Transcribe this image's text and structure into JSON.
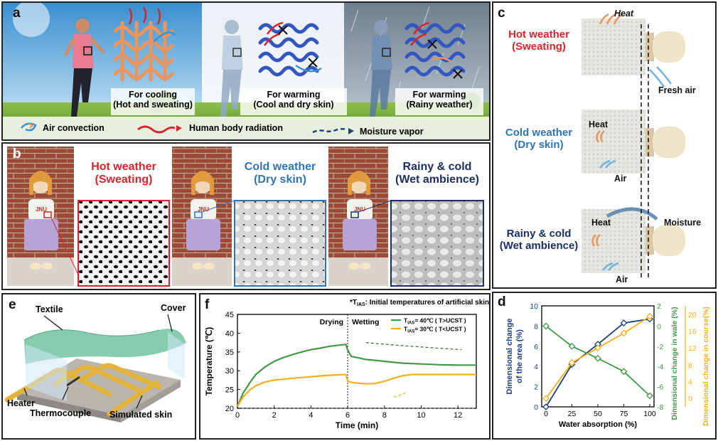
{
  "panel_a": {
    "label": "a",
    "cooling": {
      "line1": "For cooling",
      "line2": "(Hot and sweating)"
    },
    "warming_dry": {
      "line1": "For warming",
      "line2": "(Cool and dry skin)"
    },
    "warming_rain": {
      "line1": "For warming",
      "line2": "(Rainy weather)"
    },
    "legend": {
      "air": "Air convection",
      "radiation": "Human body radiation",
      "vapor": "Moisture vapor"
    }
  },
  "panel_b": {
    "label": "b",
    "hot": {
      "line1": "Hot weather",
      "line2": "(Sweating)",
      "shirt": "JNU"
    },
    "cold": {
      "line1": "Cold weather",
      "line2": "(Dry skin)",
      "shirt": "JNU"
    },
    "rainy": {
      "line1": "Rainy & cold",
      "line2": "(Wet ambience)",
      "shirt": "JNU"
    }
  },
  "panel_c": {
    "label": "c",
    "hot": {
      "line1": "Hot weather",
      "line2": "(Sweating)",
      "heat": "Heat",
      "fresh": "Fresh air"
    },
    "cold": {
      "line1": "Cold weather",
      "line2": "(Dry skin)",
      "heat": "Heat",
      "air": "Air"
    },
    "rainy": {
      "line1": "Rainy & cold",
      "line2": "(Wet ambience)",
      "heat": "Heat",
      "air": "Air",
      "moisture": "Moisture"
    }
  },
  "panel_e": {
    "label": "e",
    "textile": "Textile",
    "cover": "Cover",
    "heater": "Heater",
    "thermocouple": "Thermocouple",
    "skin": "Simulated skin"
  },
  "colors": {
    "hot": "#d8242c",
    "cold": "#2f74b5",
    "rainy": "#1b2f63",
    "green": "#3e9a46",
    "orange": "#f5b019",
    "navy": "#1f3f7a"
  },
  "chart_data": [
    {
      "type": "line",
      "panel": "f",
      "title": "*T_IAS: Initial temperatures of artificial skin",
      "note_star": "*T",
      "note_sub": "IAS",
      "note_rest": ": Initial temperatures of artificial skin",
      "xlabel": "Time (min)",
      "ylabel": "Temperature (℃)",
      "xlim": [
        0,
        13
      ],
      "ylim": [
        20,
        45
      ],
      "xticks": [
        0,
        2,
        4,
        6,
        8,
        10,
        12
      ],
      "yticks": [
        20,
        25,
        30,
        35,
        40,
        45
      ],
      "drying_label": "Drying",
      "wetting_label": "Wetting",
      "divider_x": 6,
      "legend_position": "top-right",
      "series": [
        {
          "name": "T_IAS= 40℃ ( T>UCST )",
          "name_pre": "T",
          "name_sub": "IAS",
          "name_post": "= 40℃ ( T>UCST )",
          "color": "#3e9a46",
          "x": [
            0,
            0.3,
            0.7,
            1,
            1.5,
            2,
            2.5,
            3,
            3.5,
            4,
            4.5,
            5,
            5.5,
            5.9,
            6,
            6.2,
            7,
            8,
            9,
            10,
            11,
            12,
            13
          ],
          "y": [
            20.5,
            24,
            27,
            29,
            31,
            32.5,
            33.5,
            34.3,
            35,
            35.6,
            36,
            36.5,
            36.8,
            37,
            35.5,
            33.8,
            33,
            32.5,
            32,
            31.8,
            31.6,
            31.5,
            31.5
          ]
        },
        {
          "name": "T_IAS= 30℃ ( T<UCST )",
          "name_pre": "T",
          "name_sub": "IAS",
          "name_post": "= 30℃ ( T<UCST )",
          "color": "#f5b019",
          "x": [
            0,
            0.3,
            0.7,
            1,
            1.5,
            2,
            3,
            4,
            5,
            5.9,
            6,
            6.3,
            7,
            7.5,
            8,
            8.5,
            9,
            9.5,
            10,
            11,
            12,
            13
          ],
          "y": [
            20.5,
            23,
            25,
            26,
            27,
            27.5,
            28,
            28.4,
            28.8,
            29,
            27.2,
            26.8,
            26.5,
            26.6,
            27.2,
            28,
            28.7,
            29,
            29,
            29,
            29,
            29
          ]
        }
      ]
    },
    {
      "type": "line",
      "panel": "d",
      "xlabel": "Water absorption (%)",
      "ylabel_left": "Dimensional change of the area (%)",
      "ylabel_left_1": "Dimensional change",
      "ylabel_left_2": "of the area (%)",
      "ylabel_mid": "Dimensional change in wale (%)",
      "ylabel_right": "Dimensional change in course(%)",
      "xlim": [
        0,
        100
      ],
      "xticks": [
        0,
        25,
        50,
        75,
        100
      ],
      "ylim_left": [
        0,
        10
      ],
      "yticks_left": [
        0,
        2,
        4,
        6,
        8,
        10
      ],
      "ylim_mid": [
        -8,
        2
      ],
      "yticks_mid": [
        -8,
        -6,
        -4,
        -2,
        0,
        2
      ],
      "ylim_right": [
        -2,
        22
      ],
      "yticks_right": [
        0,
        4,
        8,
        12,
        16,
        20
      ],
      "series": [
        {
          "name": "area",
          "axis": "left",
          "color": "#1f3f7a",
          "x": [
            0,
            25,
            50,
            75,
            100
          ],
          "y": [
            0,
            4.2,
            6.2,
            8.3,
            8.7
          ]
        },
        {
          "name": "wale",
          "axis": "mid",
          "color": "#3e9a46",
          "x": [
            0,
            25,
            50,
            75,
            100
          ],
          "y": [
            0,
            -2,
            -3.2,
            -4.5,
            -6.9
          ]
        },
        {
          "name": "course",
          "axis": "right",
          "color": "#f5b019",
          "x": [
            0,
            25,
            50,
            75,
            100
          ],
          "y": [
            0,
            8.5,
            12,
            15.5,
            19.5
          ]
        }
      ]
    }
  ]
}
